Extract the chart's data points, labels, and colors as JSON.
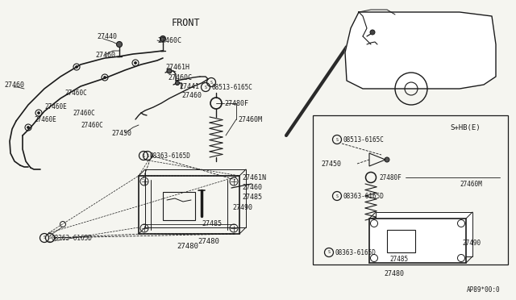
{
  "bg_color": "#f5f5f0",
  "line_color": "#1a1a1a",
  "text_color": "#1a1a1a",
  "fig_width": 6.4,
  "fig_height": 3.72,
  "dpi": 100,
  "front_label": "FRONT",
  "footer_code": "AP89*00:0",
  "shb_label": "S+HB(E)"
}
